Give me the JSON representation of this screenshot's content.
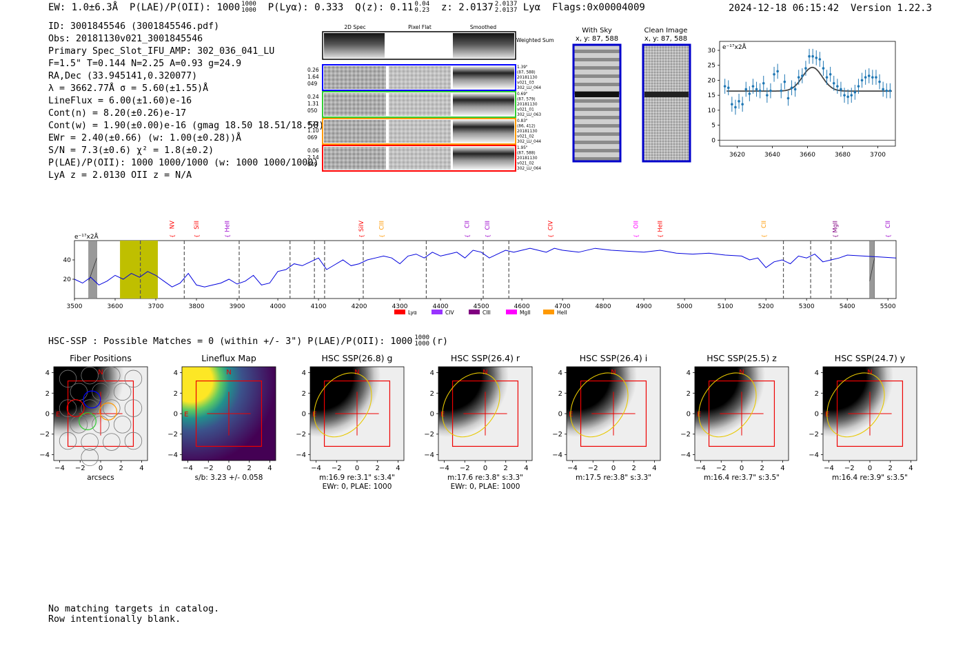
{
  "header": {
    "ew": "EW: 1.0±6.3Å",
    "plae_label": "P(LAE)/P(OII): 1000",
    "plae_hi": "1000",
    "plae_lo": "1000",
    "plya": "P(Lyα): 0.333",
    "qz_label": "Q(z): 0.11",
    "qz_hi": "0.04",
    "qz_lo": "0.23",
    "z_label": "z: 2.0137",
    "z_hi": "2.0137",
    "z_lo": "2.0137",
    "z_line": "Lyα",
    "flags": "Flags:0x00004009",
    "timestamp": "2024-12-18 06:15:42",
    "version": "Version 1.22.3"
  },
  "info_lines": [
    "ID: 3001845546 (3001845546.pdf)",
    "Obs: 20181130v021_3001845546",
    "Primary Spec_Slot_IFU_AMP: 302_036_041_LU",
    "F=1.5\"  T=0.144  N=2.25  A=0.93  g=24.9",
    "RA,Dec (33.945141,0.320077)",
    "λ = 3662.77Å   σ = 5.60(±1.55)Å",
    "LineFlux = 6.00(±1.60)e-16",
    "Cont(n) = 8.20(±0.26)e-17",
    "Cont(w) = 1.90(±0.00)e-16 (gmag 18.50 18.51/18.50)",
    "EWr = 2.40(±0.66) (w: 1.00(±0.28))Å",
    "S/N = 7.3(±0.6)  χ² = 1.8(±0.2)",
    "P(LAE)/P(OII): 1000 1000/1000 (w: 1000 1000/1000)",
    "LyA z = 2.0130  OII z = N/A"
  ],
  "cutouts": {
    "col_headers": [
      "2D Spec",
      "Pixel Flat",
      "Smoothed"
    ],
    "weighted_label": "Weighted Sum",
    "rows": [
      {
        "left": [
          "0.26",
          "1.64",
          "049"
        ],
        "right": [
          "1.39\"",
          "(87, 588)",
          "20181130",
          "v021_03",
          "302_LU_064"
        ],
        "color": "#0000ff"
      },
      {
        "left": [
          "0.24",
          "1.31",
          "050"
        ],
        "right": [
          "0.69\"",
          "(87, 579)",
          "20181130",
          "v021_01",
          "302_LU_063"
        ],
        "color": "#33cc33"
      },
      {
        "left": [
          "0.22",
          "1.10",
          "069"
        ],
        "right": [
          "0.83\"",
          "(86, 412)",
          "20181130",
          "v021_02",
          "302_LU_044"
        ],
        "color": "#ff9900"
      },
      {
        "left": [
          "0.06",
          "2.14",
          "049"
        ],
        "right": [
          "1.95\"",
          "(87, 588)",
          "20181130",
          "v021_02",
          "302_LU_064"
        ],
        "color": "#ff0000"
      }
    ],
    "with_sky_title": "With Sky",
    "with_sky_coords": "x, y: 87, 588",
    "clean_title": "Clean Image",
    "clean_coords": "x, y: 87, 588"
  },
  "line_fit": {
    "unit_label": "e⁻¹⁷x2Å",
    "x_ticks": [
      "3620",
      "3640",
      "3660",
      "3680",
      "3700"
    ],
    "y_ticks": [
      "0",
      "5",
      "10",
      "15",
      "20",
      "25",
      "30"
    ]
  },
  "chart_data": [
    {
      "type": "scatter",
      "title": "Line fit",
      "xlabel": "",
      "ylabel": "e-17 x2A",
      "xlim": [
        3610,
        3710
      ],
      "ylim": [
        -2,
        33
      ],
      "x": [
        3613,
        3615,
        3617,
        3619,
        3621,
        3623,
        3625,
        3627,
        3629,
        3631,
        3633,
        3635,
        3637,
        3639,
        3641,
        3643,
        3645,
        3647,
        3649,
        3651,
        3653,
        3655,
        3657,
        3659,
        3661,
        3663,
        3665,
        3667,
        3669,
        3671,
        3673,
        3675,
        3677,
        3679,
        3681,
        3683,
        3685,
        3687,
        3689,
        3691,
        3693,
        3695,
        3697,
        3699,
        3701,
        3703,
        3705,
        3707
      ],
      "values": [
        18,
        17.5,
        12,
        11,
        13,
        12,
        17,
        15.5,
        18,
        17,
        16.5,
        19,
        15,
        16.5,
        22,
        23,
        16.5,
        19.5,
        14,
        17.5,
        17,
        21,
        21.5,
        24,
        28,
        28,
        27.5,
        27,
        24,
        21,
        22,
        19,
        18,
        17,
        15,
        14.5,
        15,
        16,
        18,
        20,
        21,
        21.5,
        21,
        21,
        19.5,
        17,
        16.5,
        16.5
      ],
      "errors": [
        2.5,
        2.5,
        2.5,
        2.5,
        2.5,
        2.5,
        2.5,
        2.5,
        2.5,
        2.5,
        2.5,
        2.5,
        2.5,
        2.5,
        2.5,
        2.5,
        2.5,
        2.5,
        2.5,
        2.5,
        2.5,
        2.5,
        2.5,
        2.5,
        2.5,
        2.5,
        2.5,
        2.5,
        2.5,
        2.5,
        2.5,
        2.5,
        2.5,
        2.5,
        2.5,
        2.5,
        2.5,
        2.5,
        2.5,
        2.5,
        2.5,
        2.5,
        2.5,
        2.5,
        2.5,
        2.5,
        2.5,
        2.5
      ],
      "fit": {
        "continuum": 16.4,
        "center": 3662.77,
        "sigma": 5.6,
        "amplitude": 7.9
      }
    },
    {
      "type": "line",
      "title": "Full spectrum",
      "xlabel": "",
      "ylabel": "e-17 x2A",
      "unit_label": "e⁻¹⁷x2Å",
      "xlim": [
        3500,
        5520
      ],
      "ylim": [
        0,
        60
      ],
      "x_ticks": [
        3500,
        3600,
        3700,
        3800,
        3900,
        4000,
        4100,
        4200,
        4300,
        4400,
        4500,
        4600,
        4700,
        4800,
        4900,
        5000,
        5100,
        5200,
        5300,
        5400,
        5500
      ],
      "y_ticks": [
        20,
        40
      ],
      "x": [
        3500,
        3520,
        3540,
        3560,
        3580,
        3600,
        3620,
        3640,
        3660,
        3680,
        3700,
        3720,
        3740,
        3760,
        3780,
        3800,
        3820,
        3840,
        3860,
        3880,
        3900,
        3920,
        3940,
        3960,
        3980,
        4000,
        4020,
        4040,
        4060,
        4080,
        4100,
        4120,
        4140,
        4160,
        4180,
        4200,
        4220,
        4240,
        4260,
        4280,
        4300,
        4320,
        4340,
        4360,
        4380,
        4400,
        4420,
        4440,
        4460,
        4480,
        4500,
        4520,
        4540,
        4560,
        4580,
        4600,
        4620,
        4640,
        4660,
        4680,
        4700,
        4740,
        4780,
        4820,
        4860,
        4900,
        4940,
        4980,
        5020,
        5060,
        5100,
        5140,
        5160,
        5180,
        5200,
        5220,
        5240,
        5260,
        5280,
        5300,
        5320,
        5340,
        5360,
        5380,
        5400,
        5440,
        5480,
        5520
      ],
      "values": [
        20,
        16,
        22,
        14,
        18,
        24,
        20,
        26,
        22,
        28,
        24,
        18,
        12,
        16,
        26,
        14,
        12,
        14,
        16,
        20,
        15,
        18,
        24,
        14,
        16,
        28,
        30,
        36,
        34,
        38,
        42,
        30,
        35,
        40,
        34,
        36,
        40,
        42,
        44,
        42,
        36,
        44,
        46,
        42,
        48,
        44,
        46,
        48,
        42,
        50,
        48,
        42,
        46,
        50,
        48,
        50,
        52,
        50,
        48,
        52,
        50,
        48,
        52,
        50,
        49,
        48,
        50,
        47,
        46,
        47,
        45,
        44,
        40,
        42,
        32,
        38,
        40,
        36,
        44,
        42,
        46,
        38,
        40,
        42,
        45,
        44,
        43,
        42
      ],
      "shaded_regions": [
        [
          3612,
          3705
        ]
      ],
      "vlines_dashed": [
        3662,
        3770,
        3905,
        4030,
        4090,
        4115,
        4210,
        4365,
        4505,
        4568,
        5243,
        5310,
        5360
      ],
      "gray_bands": [
        [
          3535,
          3555
        ],
        [
          5455,
          5467
        ]
      ],
      "line_labels": [
        {
          "name": "NV",
          "wavelength": 3740,
          "color": "#ff0000"
        },
        {
          "name": "SiII",
          "wavelength": 3800,
          "color": "#ff0000"
        },
        {
          "name": "HeII",
          "wavelength": 3875,
          "color": "#9900cc"
        },
        {
          "name": "SiIV",
          "wavelength": 4205,
          "color": "#ff0000"
        },
        {
          "name": "CIII",
          "wavelength": 4255,
          "color": "#ff9900"
        },
        {
          "name": "CII",
          "wavelength": 4465,
          "color": "#9900cc"
        },
        {
          "name": "CIII",
          "wavelength": 4515,
          "color": "#9900cc"
        },
        {
          "name": "CIV",
          "wavelength": 4670,
          "color": "#ff0000"
        },
        {
          "name": "OII",
          "wavelength": 4880,
          "color": "#ff00ff"
        },
        {
          "name": "HeII",
          "wavelength": 4940,
          "color": "#ff0000"
        },
        {
          "name": "CII",
          "wavelength": 5195,
          "color": "#ff9900"
        },
        {
          "name": "MgII",
          "wavelength": 5370,
          "color": "#800080"
        },
        {
          "name": "CII",
          "wavelength": 5500,
          "color": "#9900cc"
        }
      ],
      "legend": [
        {
          "name": "Lyα",
          "color": "#ff0000"
        },
        {
          "name": "CIV",
          "color": "#9933ff"
        },
        {
          "name": "CIII",
          "color": "#800080"
        },
        {
          "name": "MgII",
          "color": "#ff00ff"
        },
        {
          "name": "HeII",
          "color": "#ff9900"
        }
      ]
    }
  ],
  "hsc": {
    "title_main": "HSC-SSP : Possible Matches = 0 (within +/- 3\")  P(LAE)/P(OII): 1000",
    "title_hi": "1000",
    "title_lo": "1000",
    "title_tail": "(r)",
    "ticks": [
      "−4",
      "−2",
      "0",
      "2",
      "4"
    ],
    "north_label": "N",
    "east_label": "E",
    "panels": [
      {
        "title": "Fiber Positions",
        "caption1": "arcsecs",
        "caption2": ""
      },
      {
        "title": "Lineflux Map",
        "caption1": "s/b: 3.23 +/- 0.058",
        "caption2": ""
      },
      {
        "title": "HSC SSP(26.8) g",
        "caption1": "m:16.9  re:3.1\"  s:3.4\"",
        "caption2": "EWr: 0, PLAE: 1000"
      },
      {
        "title": "HSC SSP(26.4) r",
        "caption1": "m:17.6  re:3.8\"  s:3.3\"",
        "caption2": "EWr: 0, PLAE: 1000"
      },
      {
        "title": "HSC SSP(26.4) i",
        "caption1": "m:17.5  re:3.8\"  s:3.3\"",
        "caption2": ""
      },
      {
        "title": "HSC SSP(25.5) z",
        "caption1": "m:16.4  re:3.7\"  s:3.5\"",
        "caption2": ""
      },
      {
        "title": "HSC SSP(24.7) y",
        "caption1": "m:16.4  re:3.9\"  s:3.5\"",
        "caption2": ""
      }
    ]
  },
  "footer": {
    "line1": "No matching targets in catalog.",
    "line2": "Row intentionally blank."
  }
}
